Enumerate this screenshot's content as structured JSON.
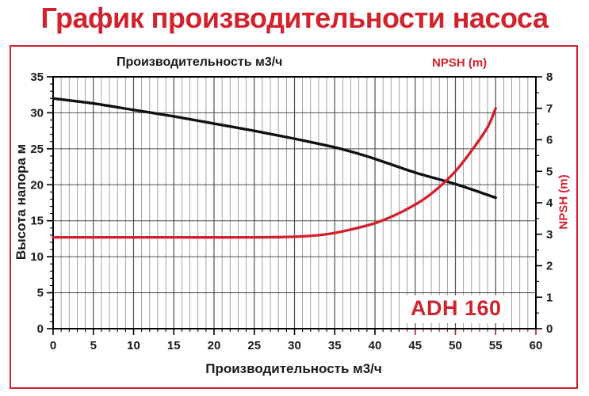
{
  "title": "График производительности насоса",
  "colors": {
    "accent_red": "#d1232e",
    "curve_black": "#111111",
    "grid_minor": "#8a8a8a",
    "grid_major": "#4f4f4f",
    "frame": "#000000",
    "red_tick": "#9c2129"
  },
  "labels": {
    "top_axis": "Производительность м3/ч",
    "npsh_top": "NPSH (m)",
    "y_left": "Высота напора м",
    "y_right": "NPSH (m)",
    "x_bottom": "Производительность м3/ч",
    "model": "ADH 160"
  },
  "chart_data": {
    "type": "line",
    "title": "График производительности насоса",
    "annotation": "ADH 160",
    "grid": true,
    "x_axis": {
      "label": "Производительность м3/ч",
      "min": 0,
      "max": 60,
      "major_step": 5,
      "minor_step": 1,
      "ticks": [
        0,
        5,
        10,
        15,
        20,
        25,
        30,
        35,
        40,
        45,
        50,
        55,
        60
      ],
      "red_ticks_from": 44
    },
    "y_left_axis": {
      "label": "Высота напора м",
      "min": 0,
      "max": 35,
      "major_step": 5,
      "minor_step": 1,
      "ticks": [
        0,
        5,
        10,
        15,
        20,
        25,
        30,
        35
      ]
    },
    "y_right_axis": {
      "label": "NPSH (m)",
      "min": 0,
      "max": 8,
      "major_step": 1,
      "minor_step": 0.5,
      "ticks": [
        0,
        1,
        2,
        3,
        4,
        5,
        6,
        7,
        8
      ]
    },
    "series": [
      {
        "name": "Высота напора м",
        "axis": "left",
        "color": "#111111",
        "points": [
          [
            0,
            32
          ],
          [
            5,
            31.3
          ],
          [
            10,
            30.4
          ],
          [
            15,
            29.5
          ],
          [
            20,
            28.5
          ],
          [
            25,
            27.5
          ],
          [
            30,
            26.4
          ],
          [
            35,
            25.2
          ],
          [
            38,
            24.3
          ],
          [
            40,
            23.6
          ],
          [
            45,
            21.7
          ],
          [
            50,
            20.1
          ],
          [
            55,
            18.2
          ]
        ]
      },
      {
        "name": "NPSH (m)",
        "axis": "right",
        "color": "#d1232e",
        "points": [
          [
            0,
            2.9
          ],
          [
            8,
            2.9
          ],
          [
            16,
            2.9
          ],
          [
            24,
            2.9
          ],
          [
            30,
            2.92
          ],
          [
            34,
            3.0
          ],
          [
            37,
            3.15
          ],
          [
            40,
            3.35
          ],
          [
            42,
            3.55
          ],
          [
            44,
            3.8
          ],
          [
            46,
            4.1
          ],
          [
            48,
            4.5
          ],
          [
            50,
            5.0
          ],
          [
            52,
            5.65
          ],
          [
            54,
            6.4
          ],
          [
            55,
            7.0
          ]
        ]
      }
    ]
  }
}
